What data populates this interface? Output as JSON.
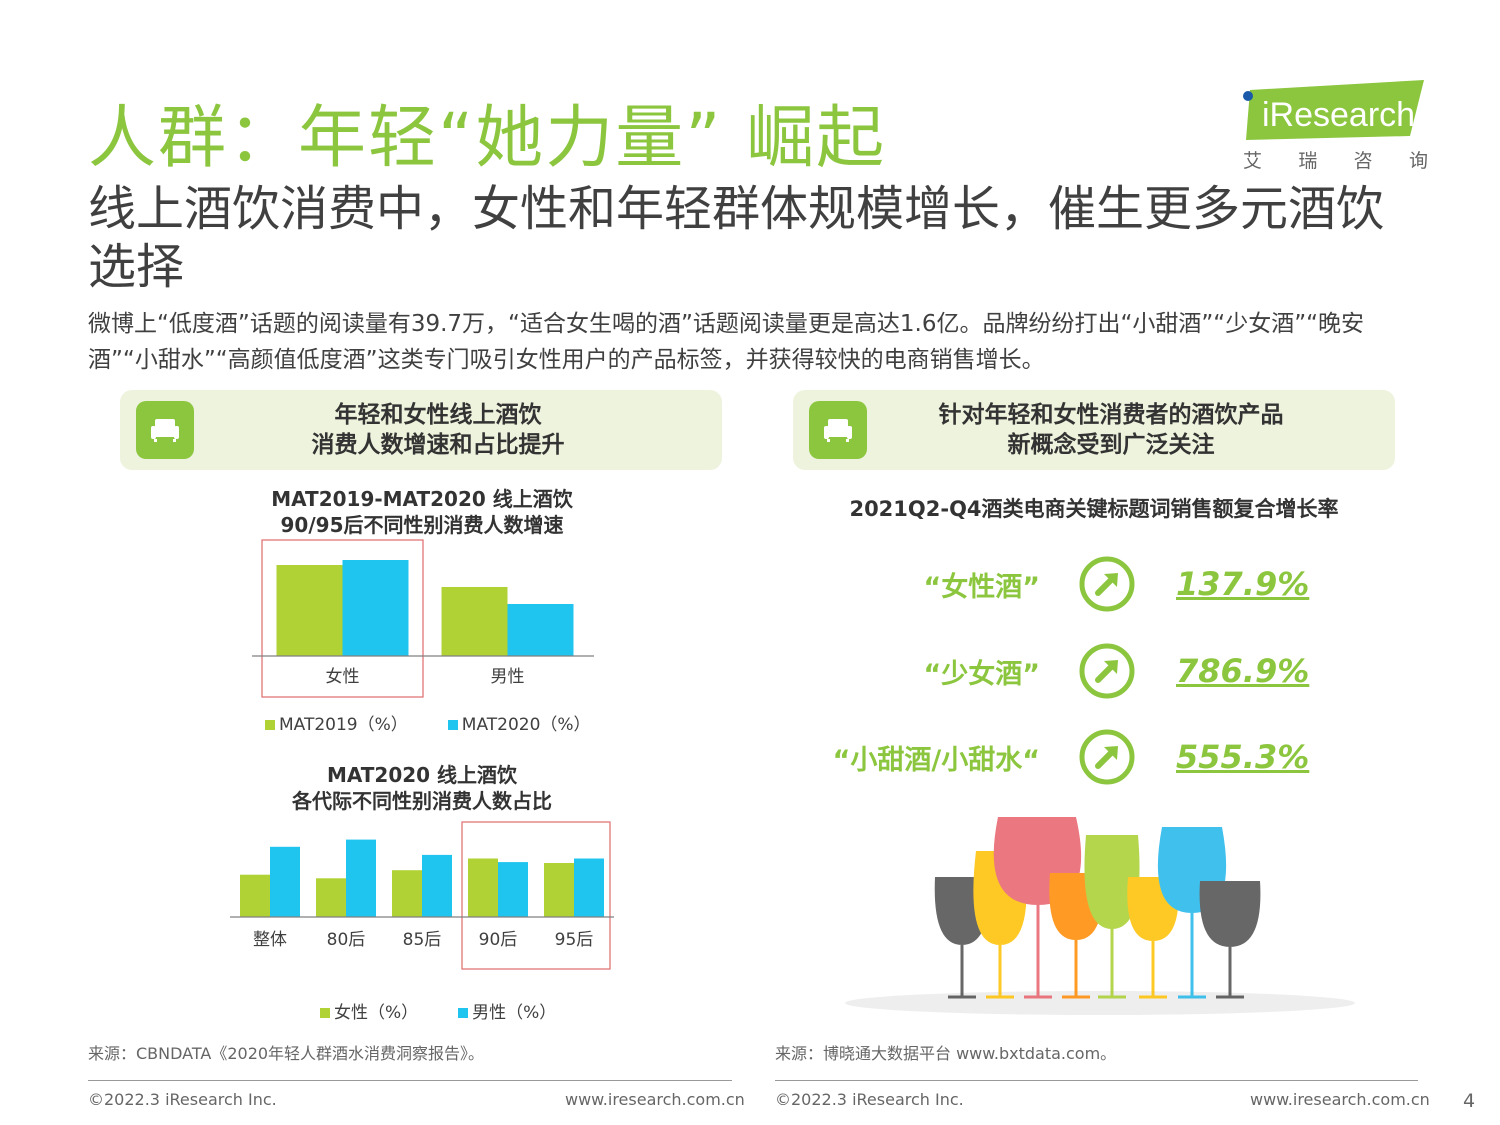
{
  "title": "人群：年轻“她力量” 崛起",
  "subtitle": "线上酒饮消费中，女性和年轻群体规模增长，催生更多元酒饮选择",
  "body_text": "微博上“低度酒”话题的阅读量有39.7万，“适合女生喝的酒”话题阅读量更是高达1.6亿。品牌纷纷打出“小甜酒”“少女酒”“晚安酒”“小甜水”“高颜值低度酒”这类专门吸引女性用户的产品标签，并获得较快的电商销售增长。",
  "logo": {
    "text": "iResearch",
    "cn_chars": [
      "艾",
      "瑞",
      "咨",
      "询"
    ]
  },
  "left_panel": {
    "header_line1": "年轻和女性线上酒饮",
    "header_line2": "消费人数增速和占比提升",
    "icon": "sofa-icon"
  },
  "right_panel": {
    "header_line1": "针对年轻和女性消费者的酒饮产品",
    "header_line2": "新概念受到广泛关注",
    "icon": "sofa-icon",
    "chart_title": "2021Q2-Q4酒类电商关键标题词销售额复合增长率",
    "keywords": [
      {
        "label": "“女性酒”",
        "value": "137.9%"
      },
      {
        "label": "“少女酒”",
        "value": "786.9%"
      },
      {
        "label": "“小甜酒/小甜水“",
        "value": "555.3%"
      }
    ]
  },
  "colors": {
    "green": "#b0d235",
    "blue": "#1fc4ef",
    "accent": "#8cc63f",
    "highlight": "#e06b6b"
  },
  "chart_data": [
    {
      "type": "bar",
      "title_line1": "MAT2019-MAT2020 线上酒饮",
      "title_line2": "90/95后不同性别消费人数增速",
      "categories": [
        "女性",
        "男性"
      ],
      "series": [
        {
          "name": "MAT2019（%）",
          "values": [
            91,
            69
          ]
        },
        {
          "name": "MAT2020（%）",
          "values": [
            96,
            52
          ]
        }
      ],
      "ylim": [
        0,
        100
      ],
      "highlight_categories": [
        0
      ],
      "legend": "bottom"
    },
    {
      "type": "bar",
      "title_line1": "MAT2020 线上酒饮",
      "title_line2": "各代际不同性别消费人数占比",
      "categories": [
        "整体",
        "80后",
        "85后",
        "90后",
        "95后"
      ],
      "series": [
        {
          "name": "女性（%）",
          "values": [
            47,
            43,
            52,
            65,
            60
          ]
        },
        {
          "name": "男性（%）",
          "values": [
            78,
            86,
            69,
            61,
            65
          ]
        }
      ],
      "ylim": [
        0,
        100
      ],
      "highlight_categories": [
        3,
        4
      ],
      "legend": "bottom"
    }
  ],
  "sources": {
    "left": "来源：CBNDATA《2020年轻人群酒水消费洞察报告》。",
    "right": "来源：博晓通大数据平台 www.bxtdata.com。"
  },
  "footer": {
    "copyright": "©2022.3 iResearch Inc.",
    "url": "www.iresearch.com.cn",
    "page": "4"
  }
}
